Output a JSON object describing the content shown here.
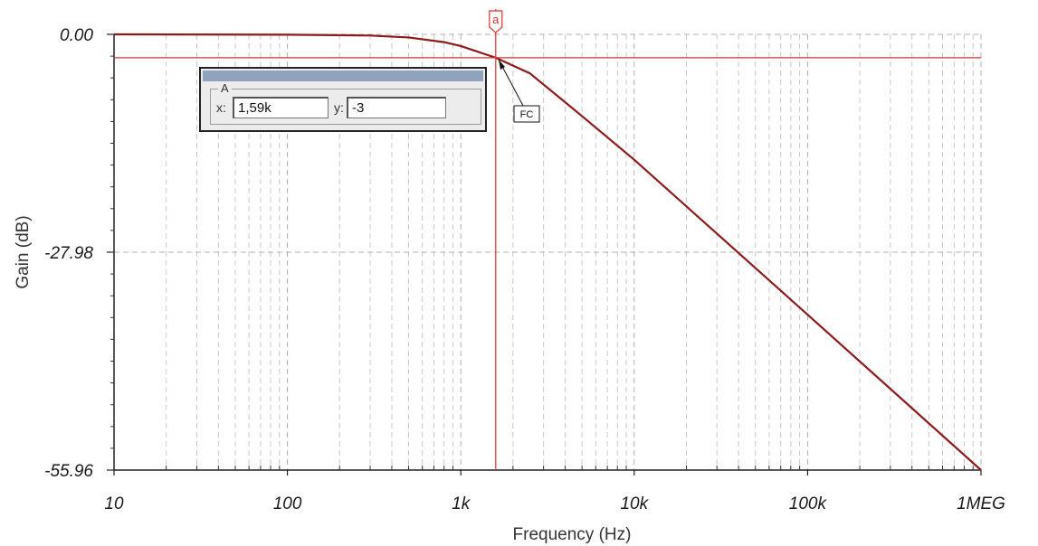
{
  "chart_data": {
    "type": "line",
    "x_scale": "log",
    "xlabel": "Frequency (Hz)",
    "ylabel": "Gain (dB)",
    "xlim": [
      10,
      1000000
    ],
    "ylim": [
      -55.96,
      0.0
    ],
    "x_ticks": [
      {
        "value": 10,
        "label": "10"
      },
      {
        "value": 100,
        "label": "100"
      },
      {
        "value": 1000,
        "label": "1k"
      },
      {
        "value": 10000,
        "label": "10k"
      },
      {
        "value": 100000,
        "label": "100k"
      },
      {
        "value": 1000000,
        "label": "1MEG"
      }
    ],
    "y_ticks": [
      {
        "value": 0.0,
        "label": "0.00"
      },
      {
        "value": -27.98,
        "label": "-27.98"
      },
      {
        "value": -55.96,
        "label": "-55.96"
      }
    ],
    "grid": true,
    "series": [
      {
        "color": "#8b1a1a",
        "x": [
          10,
          100,
          300,
          500,
          800,
          1000,
          1590,
          2500,
          5000,
          10000,
          100000,
          1000000
        ],
        "y": [
          0.0,
          -0.04,
          -0.15,
          -0.4,
          -1.0,
          -1.5,
          -3.0,
          -5.0,
          -10.5,
          -16.1,
          -36.0,
          -55.96
        ]
      }
    ],
    "cursor": {
      "marker_label": "a",
      "x": 1590,
      "y": -3,
      "point_label": "FC",
      "color": "#e03030"
    }
  },
  "cursor_panel": {
    "group_label": "A",
    "x_label": "x:",
    "x_value": "1,59k",
    "y_label": "y:",
    "y_value": "-3"
  }
}
